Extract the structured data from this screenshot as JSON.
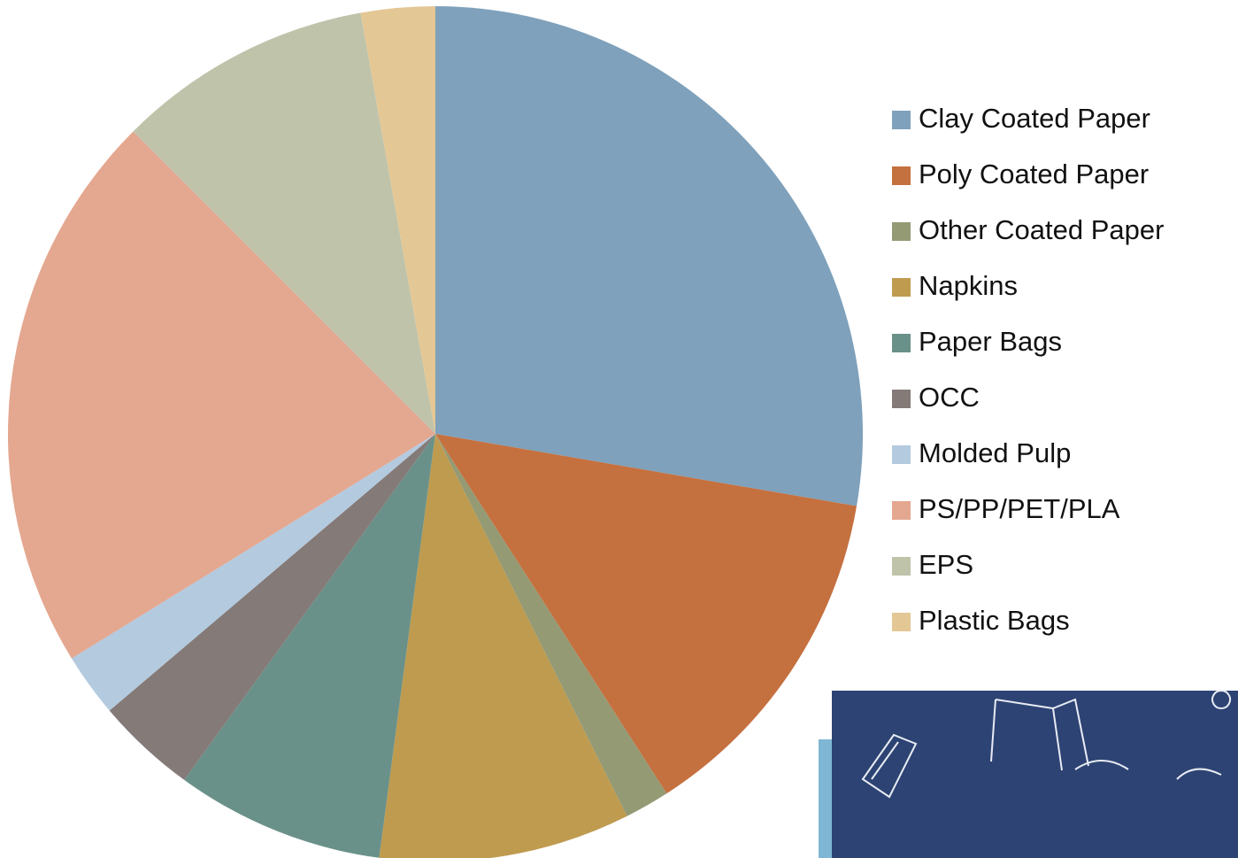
{
  "chart_data": {
    "type": "pie",
    "categories": [
      "Clay Coated Paper",
      "Poly Coated Paper",
      "Other Coated Paper",
      "Napkins",
      "Paper Bags",
      "OCC",
      "Molded Pulp",
      "PS/PP/PET/PLA",
      "EPS",
      "Plastic Bags"
    ],
    "values": [
      27.7,
      13.2,
      1.7,
      9.5,
      7.9,
      3.8,
      2.4,
      21.3,
      9.7,
      2.8
    ],
    "colors": [
      "#7fa1bb",
      "#c5703f",
      "#949a74",
      "#bf9b4f",
      "#6a9189",
      "#847a78",
      "#b4cade",
      "#e4a790",
      "#bfc3aa",
      "#e3c795"
    ],
    "legend": "right"
  }
}
